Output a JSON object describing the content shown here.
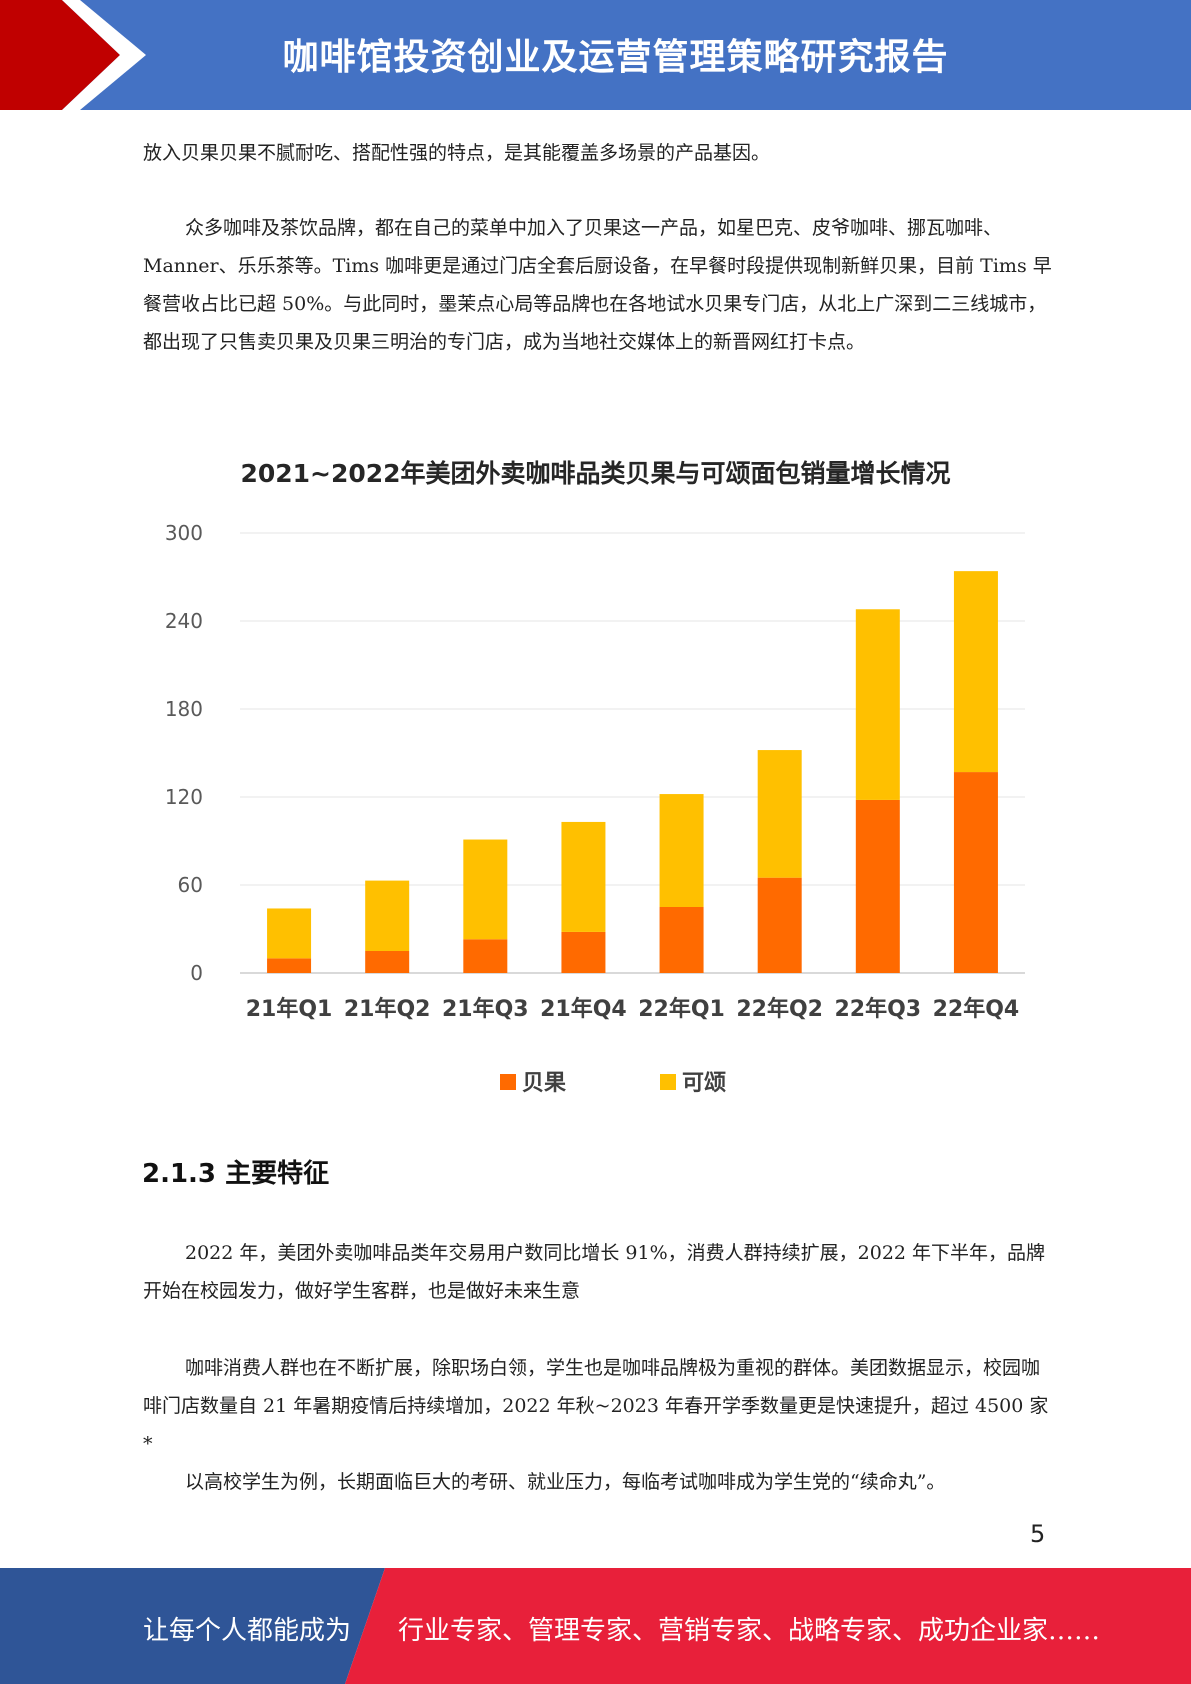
{
  "header": {
    "title": "咖啡馆投资创业及运营管理策略研究报告",
    "bg_color": "#4472c4",
    "accent_color": "#c00000"
  },
  "paragraphs": {
    "p1": "放入贝果贝果不腻耐吃、搭配性强的特点，是其能覆盖多场景的产品基因。",
    "p2": "众多咖啡及茶饮品牌，都在自己的菜单中加入了贝果这一产品，如星巴克、皮爷咖啡、挪瓦咖啡、Manner、乐乐茶等。Tims 咖啡更是通过门店全套后厨设备，在早餐时段提供现制新鲜贝果，目前 Tims 早餐营收占比已超 50%。与此同时，墨茉点心局等品牌也在各地试水贝果专门店，从北上广深到二三线城市，都出现了只售卖贝果及贝果三明治的专门店，成为当地社交媒体上的新晋网红打卡点。",
    "p3": "2022 年，美团外卖咖啡品类年交易用户数同比增长 91%，消费人群持续扩展，2022 年下半年，品牌开始在校园发力，做好学生客群，也是做好未来生意",
    "p4": "咖啡消费人群也在不断扩展，除职场白领，学生也是咖啡品牌极为重视的群体。美团数据显示，校园咖啡门店数量自 21 年暑期疫情后持续增加，2022 年秋~2023 年春开学季数量更是快速提升，超过 4500 家*",
    "p5": "以高校学生为例，长期面临巨大的考研、就业压力，每临考试咖啡成为学生党的“续命丸”。"
  },
  "section_heading": "2.1.3 主要特征",
  "page_number": "5",
  "footer": {
    "left_text": "让每个人都能成为",
    "right_text": "行业专家、管理专家、营销专家、战略专家、成功企业家……",
    "left_color": "#2f5597",
    "right_color": "#e8203a"
  },
  "chart_data": {
    "type": "bar",
    "stacked": true,
    "title": "2021~2022年美团外卖咖啡品类贝果与可颂面包销量增长情况",
    "categories": [
      "21年Q1",
      "21年Q2",
      "21年Q3",
      "21年Q4",
      "22年Q1",
      "22年Q2",
      "22年Q3",
      "22年Q4"
    ],
    "series": [
      {
        "name": "贝果",
        "color": "#ff6a00",
        "values": [
          10,
          15,
          23,
          28,
          45,
          65,
          118,
          137
        ]
      },
      {
        "name": "可颂",
        "color": "#ffc000",
        "values": [
          34,
          48,
          68,
          75,
          77,
          87,
          130,
          137
        ]
      }
    ],
    "ylim": [
      0,
      300
    ],
    "yticks": [
      0,
      60,
      120,
      180,
      240,
      300
    ],
    "grid": true,
    "legend_position": "bottom"
  }
}
